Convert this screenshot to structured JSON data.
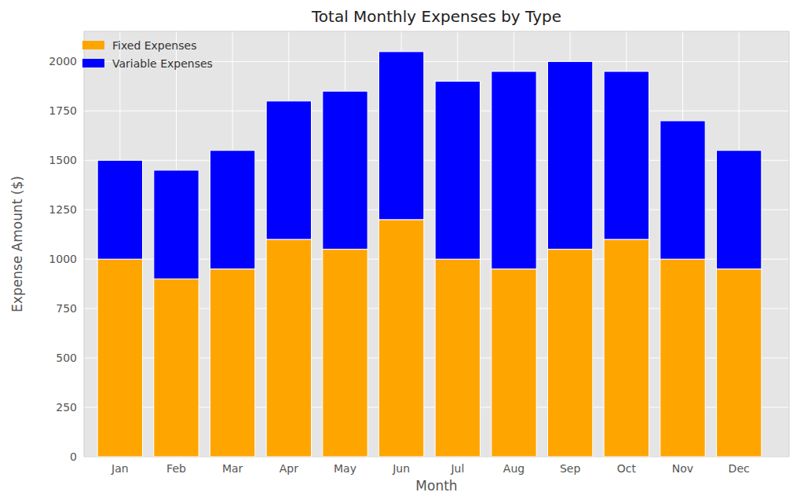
{
  "chart_data": {
    "type": "bar",
    "title": "Total Monthly Expenses by Type",
    "x_label": "Month",
    "y_label": "Expense Amount ($)",
    "categories": [
      "Jan",
      "Feb",
      "Mar",
      "Apr",
      "May",
      "Jun",
      "Jul",
      "Aug",
      "Sep",
      "Oct",
      "Nov",
      "Dec"
    ],
    "series": [
      {
        "name": "Fixed Expenses",
        "color": "#ffa500",
        "values": [
          1000,
          900,
          950,
          1100,
          1050,
          1200,
          1000,
          950,
          1050,
          1100,
          1000,
          950
        ]
      },
      {
        "name": "Variable Expenses",
        "color": "#0000ff",
        "values": [
          500,
          550,
          600,
          700,
          800,
          850,
          900,
          1000,
          950,
          850,
          700,
          600
        ]
      }
    ],
    "stacked": true,
    "ylim": [
      0,
      2152.5
    ],
    "yticks": [
      0,
      250,
      500,
      750,
      1000,
      1250,
      1500,
      1750,
      2000
    ],
    "grid": true,
    "legend": "upper left"
  }
}
